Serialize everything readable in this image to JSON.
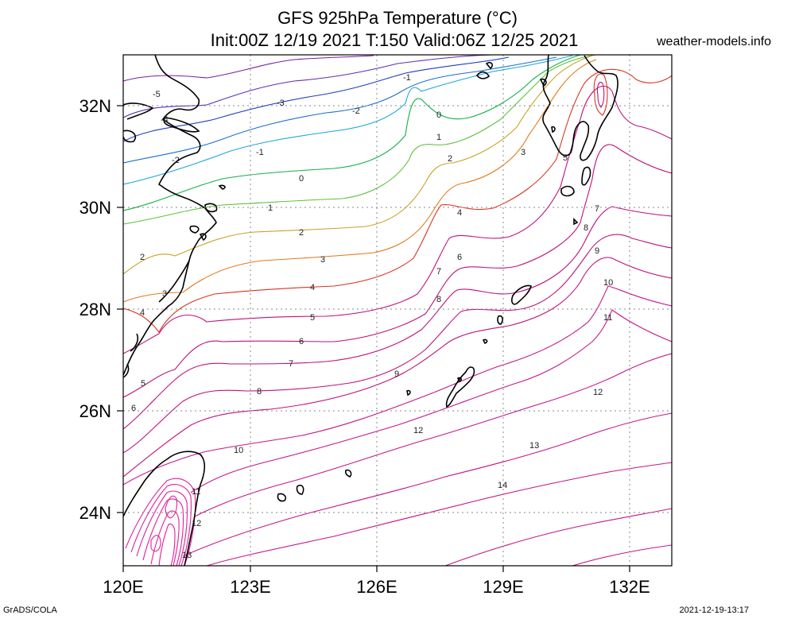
{
  "header": {
    "title_line1": "GFS 925hPa Temperature (°C)",
    "title_line2": "Init:00Z 12/19 2021 T:150 Valid:06Z 12/25 2021",
    "site": "weather-models.info"
  },
  "footer": {
    "left": "GrADS/COLA",
    "right": "2021-12-19-13:17"
  },
  "axes": {
    "lat_labels": [
      "32N",
      "30N",
      "28N",
      "26N",
      "24N"
    ],
    "lon_labels": [
      "120E",
      "123E",
      "126E",
      "129E",
      "132E"
    ]
  },
  "contour_labels": [
    {
      "text": "-5"
    },
    {
      "text": "-4"
    },
    {
      "text": "-3"
    },
    {
      "text": "-2"
    },
    {
      "text": "-2"
    },
    {
      "text": "-1"
    },
    {
      "text": "-1"
    },
    {
      "text": "0"
    },
    {
      "text": "0"
    },
    {
      "text": "1"
    },
    {
      "text": "1"
    },
    {
      "text": "2"
    },
    {
      "text": "2"
    },
    {
      "text": "2"
    },
    {
      "text": "3"
    },
    {
      "text": "3"
    },
    {
      "text": "3"
    },
    {
      "text": "4"
    },
    {
      "text": "4"
    },
    {
      "text": "4"
    },
    {
      "text": "5"
    },
    {
      "text": "5"
    },
    {
      "text": "5"
    },
    {
      "text": "6"
    },
    {
      "text": "6"
    },
    {
      "text": "6"
    },
    {
      "text": "7"
    },
    {
      "text": "7"
    },
    {
      "text": "7"
    },
    {
      "text": "8"
    },
    {
      "text": "8"
    },
    {
      "text": "8"
    },
    {
      "text": "9"
    },
    {
      "text": "9"
    },
    {
      "text": "10"
    },
    {
      "text": "10"
    },
    {
      "text": "11"
    },
    {
      "text": "11"
    },
    {
      "text": "12"
    },
    {
      "text": "12"
    },
    {
      "text": "12"
    },
    {
      "text": "13"
    },
    {
      "text": "13"
    },
    {
      "text": "14"
    }
  ],
  "colors": {
    "cold_purple": "#7a1fa2",
    "blue": "#1f3fbf",
    "cyan": "#1aa7d8",
    "green": "#12b04a",
    "yellow_green": "#8cc63f",
    "gold": "#c9a227",
    "orange": "#e07b1a",
    "red": "#d9341f",
    "magenta": "#c0127a",
    "pink": "#e0209a"
  }
}
